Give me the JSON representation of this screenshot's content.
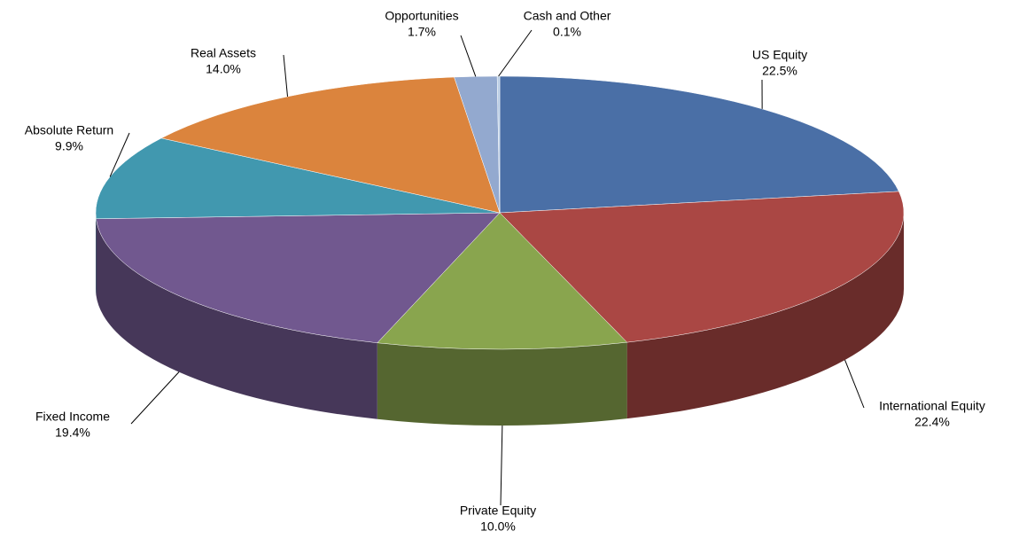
{
  "chart_data": {
    "type": "pie",
    "categories": [
      "US Equity",
      "International Equity",
      "Private Equity",
      "Fixed Income",
      "Absolute Return",
      "Real Assets",
      "Opportunities",
      "Cash and Other"
    ],
    "values": [
      22.5,
      22.4,
      10.0,
      19.4,
      9.9,
      14.0,
      1.7,
      0.1
    ],
    "value_labels": [
      "22.5%",
      "22.4%",
      "10.0%",
      "19.4%",
      "9.9%",
      "14.0%",
      "1.7%",
      "0.1%"
    ],
    "colors": [
      "#4a6fa6",
      "#aa4744",
      "#89a54e",
      "#71588f",
      "#4198af",
      "#db843d",
      "#93a9cf",
      "#b9cde5"
    ]
  }
}
